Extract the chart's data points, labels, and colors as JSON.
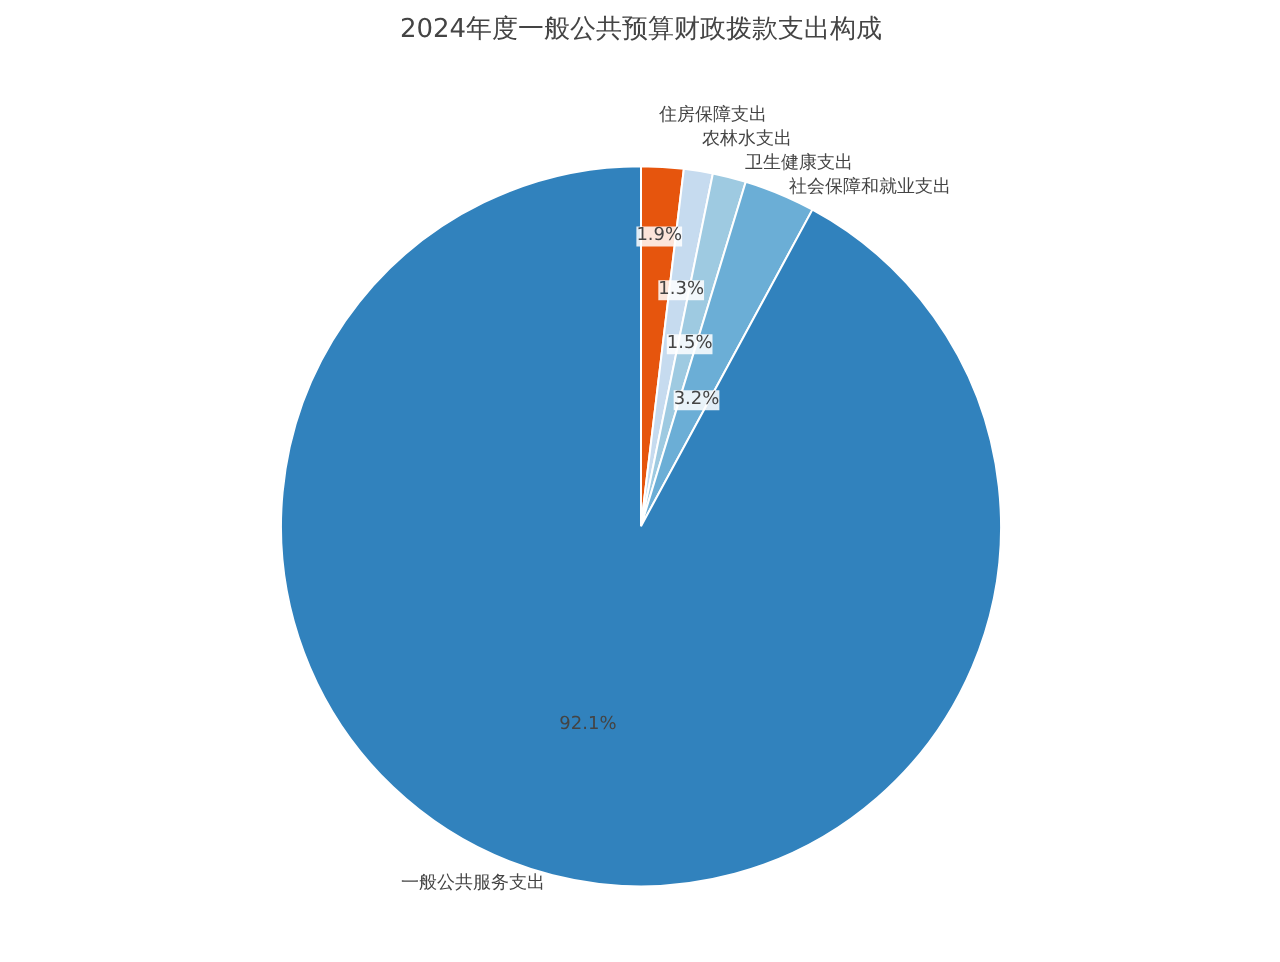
{
  "chart_data": {
    "type": "pie",
    "title": "2024年度一般公共预算财政拨款支出构成",
    "categories": [
      "住房保障支出",
      "农林水支出",
      "卫生健康支出",
      "社会保障和就业支出",
      "一般公共服务支出"
    ],
    "values": [
      1.9,
      1.3,
      1.5,
      3.2,
      92.1
    ],
    "colors": [
      "#e6550d",
      "#c6dbef",
      "#9ecae1",
      "#6baed6",
      "#3182bd"
    ],
    "value_labels": [
      "1.9%",
      "1.3%",
      "1.5%",
      "3.2%",
      "92.1%"
    ]
  }
}
